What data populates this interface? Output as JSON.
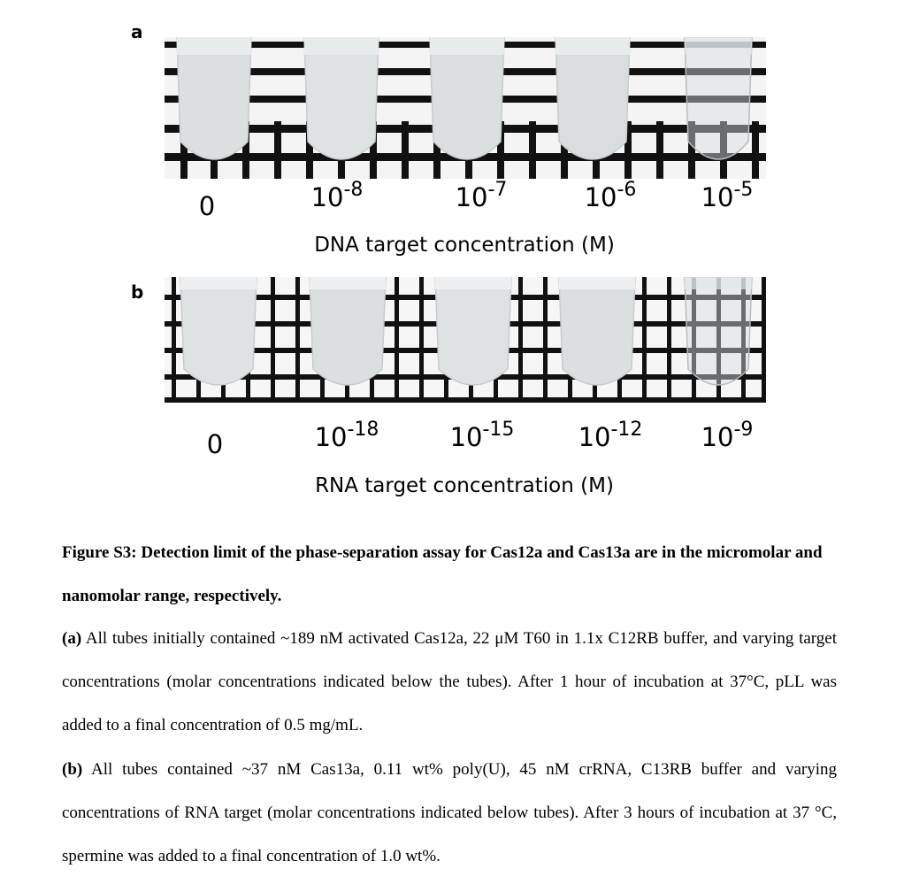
{
  "figure": {
    "panel_a": {
      "letter": "a",
      "labels": [
        {
          "base": "0",
          "exp": ""
        },
        {
          "base": "10",
          "exp": "-8"
        },
        {
          "base": "10",
          "exp": "-7"
        },
        {
          "base": "10",
          "exp": "-6"
        },
        {
          "base": "10",
          "exp": "-5"
        }
      ],
      "axis_title": "DNA target concentration (M)"
    },
    "panel_b": {
      "letter": "b",
      "labels": [
        {
          "base": "0",
          "exp": ""
        },
        {
          "base": "10",
          "exp": "-18"
        },
        {
          "base": "10",
          "exp": "-15"
        },
        {
          "base": "10",
          "exp": "-12"
        },
        {
          "base": "10",
          "exp": "-9"
        }
      ],
      "axis_title": "RNA target concentration (M)"
    }
  },
  "caption": {
    "title": "Figure S3: Detection limit of the phase-separation assay for Cas12a and Cas13a are in the micromolar and nanomolar range, respectively.",
    "para_a_label": "(a)",
    "para_a_text": " All tubes initially contained ~189 nM activated Cas12a, 22 μM T60 in 1.1x C12RB buffer, and varying target concentrations (molar concentrations indicated below the tubes). After 1 hour of incubation at 37°C, pLL was added to a final concentration of 0.5 mg/mL.",
    "para_b_label": "(b)",
    "para_b_text": " All tubes contained ~37 nM Cas13a, 0.11 wt% poly(U), 45 nM crRNA, C13RB buffer and varying concentrations of RNA target (molar concentrations indicated below tubes). After 3 hours of incubation at 37 °C, spermine was added to a final concentration of 1.0 wt%."
  }
}
